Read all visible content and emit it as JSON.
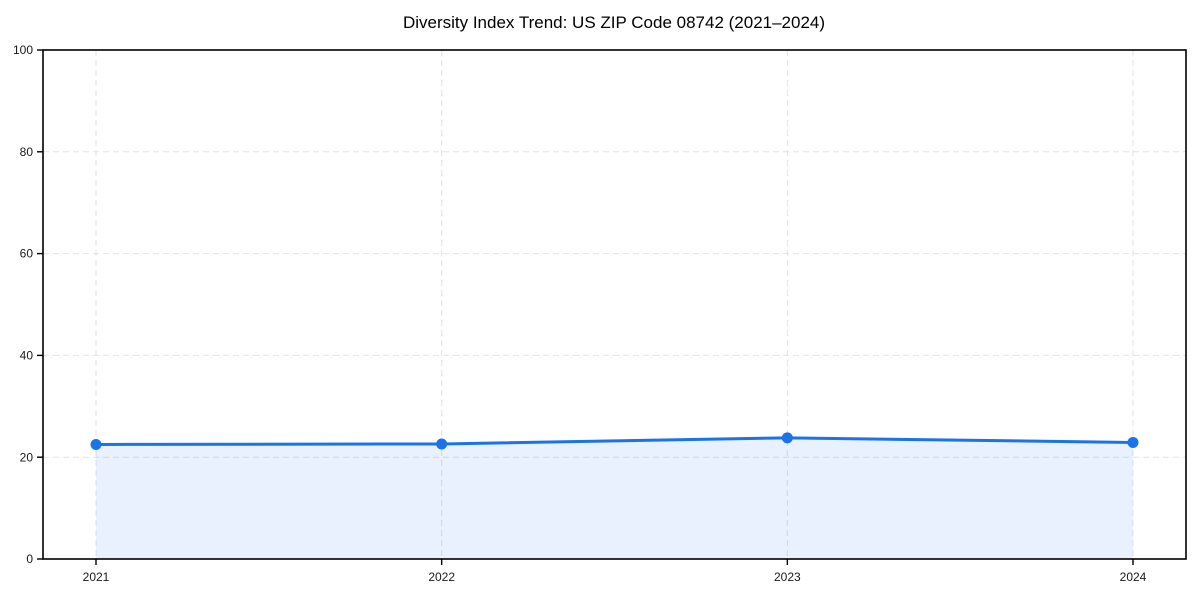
{
  "chart_data": {
    "type": "area",
    "title": "Diversity Index Trend: US ZIP Code 08742 (2021–2024)",
    "xlabel": "",
    "ylabel": "",
    "x": [
      "2021",
      "2022",
      "2023",
      "2024"
    ],
    "series": [
      {
        "name": "Diversity Index",
        "values": [
          22.5,
          22.6,
          23.8,
          22.9
        ]
      }
    ],
    "ylim": [
      0,
      100
    ],
    "yticks": [
      0,
      20,
      40,
      60,
      80,
      100
    ],
    "grid": {
      "visible": true,
      "style": "dashed",
      "directions": "both"
    },
    "legend_position": "none",
    "marker": "circle",
    "colors": {
      "line": "#1a73e8",
      "fill": "#1a73e8",
      "fill_opacity": 0.1,
      "grid": "#e2e2e2",
      "axis": "#000000",
      "background": "#ffffff",
      "tick_label": "#1a1a1a",
      "title": "#000000"
    }
  }
}
